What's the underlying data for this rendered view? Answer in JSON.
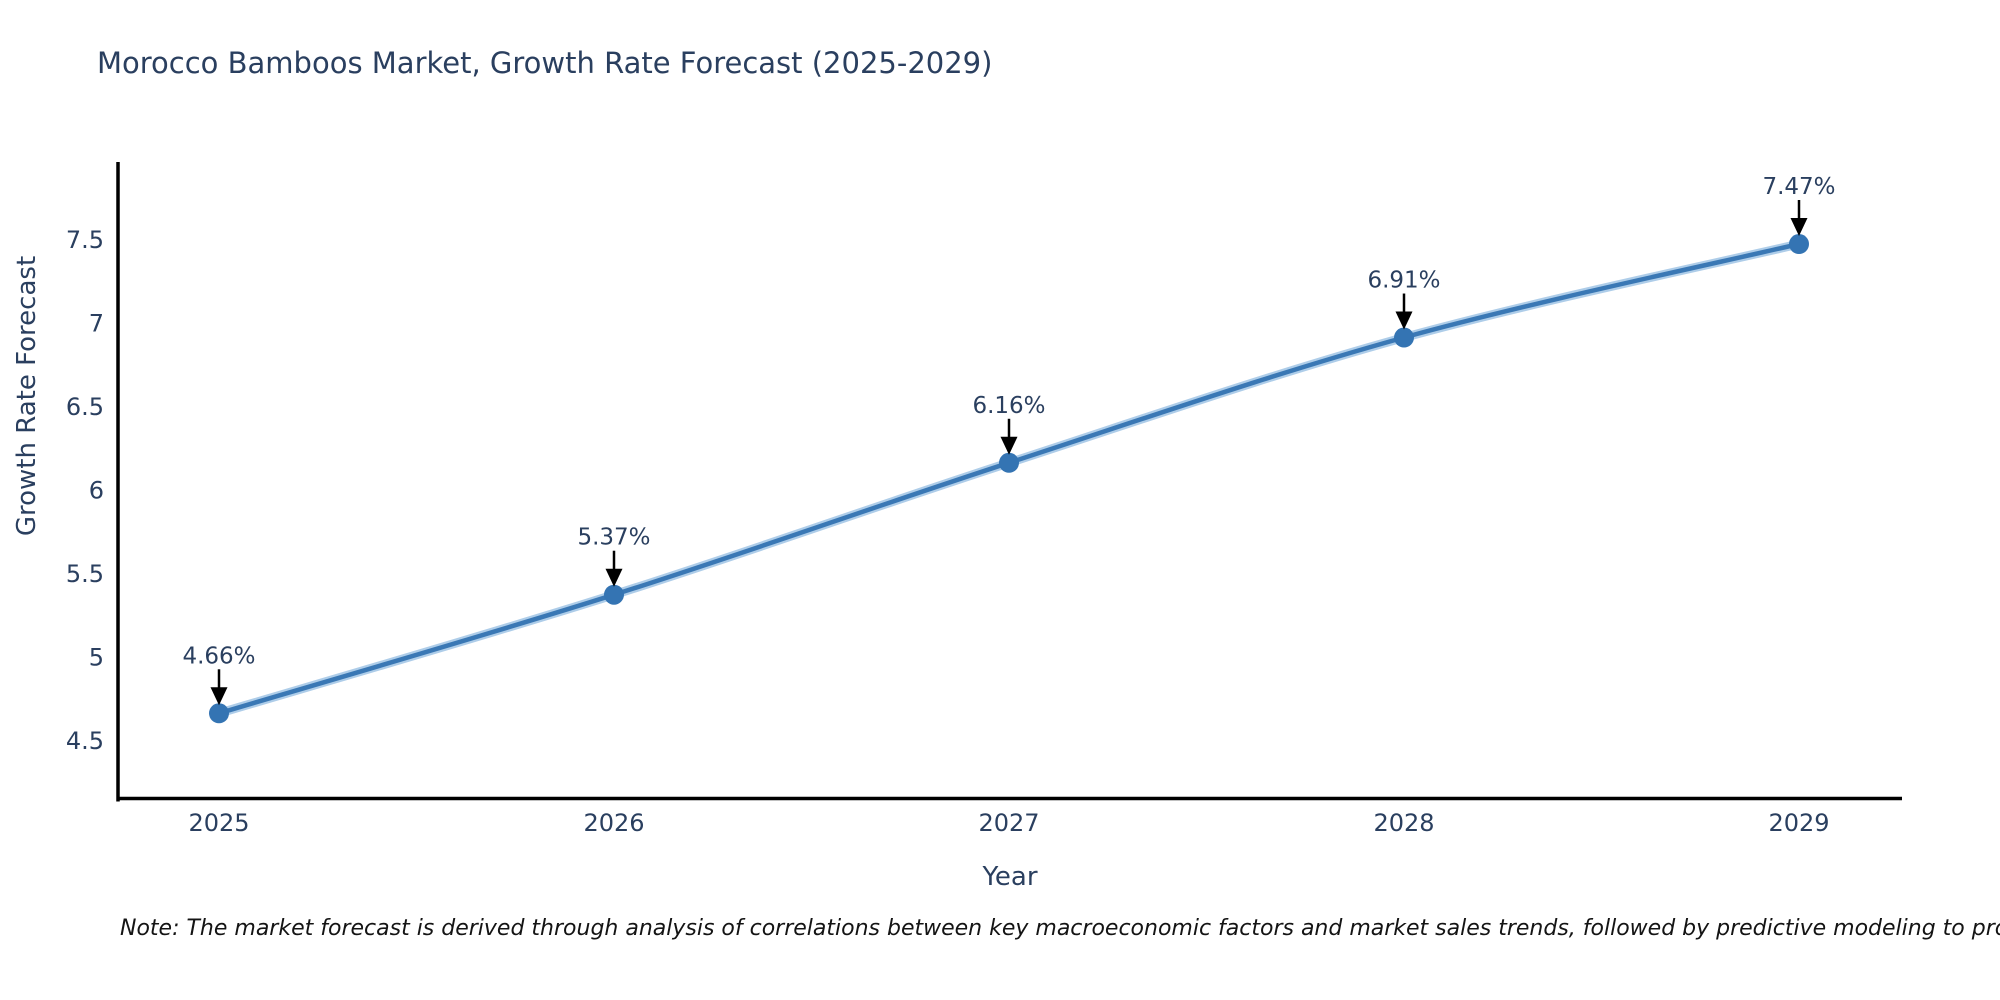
{
  "title": "Morocco Bamboos Market, Growth Rate Forecast (2025-2029)",
  "note": "Note: The market forecast is derived through analysis of correlations between key macroeconomic factors and market sales trends, followed by predictive modeling to project future sales",
  "chart_data": {
    "type": "line",
    "title": "Morocco Bamboos Market, Growth Rate Forecast (2025-2029)",
    "x": [
      "2025",
      "2026",
      "2027",
      "2028",
      "2029"
    ],
    "values": [
      4.66,
      5.37,
      6.16,
      6.91,
      7.47
    ],
    "point_labels": [
      "4.66%",
      "5.37%",
      "6.16%",
      "6.91%",
      "7.47%"
    ],
    "xlabel": "Year",
    "ylabel": "Growth Rate Forecast",
    "ytick_labels": [
      "4.5",
      "5",
      "5.5",
      "6",
      "6.5",
      "7",
      "7.5"
    ],
    "yticks": [
      4.5,
      5,
      5.5,
      6,
      6.5,
      7,
      7.5
    ],
    "ylim": [
      4.14,
      7.97
    ],
    "grid": false,
    "legend": false,
    "line_shape": "spline",
    "colors": {
      "line": "#3a78b5",
      "line_halo": "#aecde9",
      "marker": "#3474b3",
      "axis": "#000000",
      "text": "#2a3f5f",
      "annotation_arrow": "#000000",
      "note_text": "#141414"
    }
  }
}
